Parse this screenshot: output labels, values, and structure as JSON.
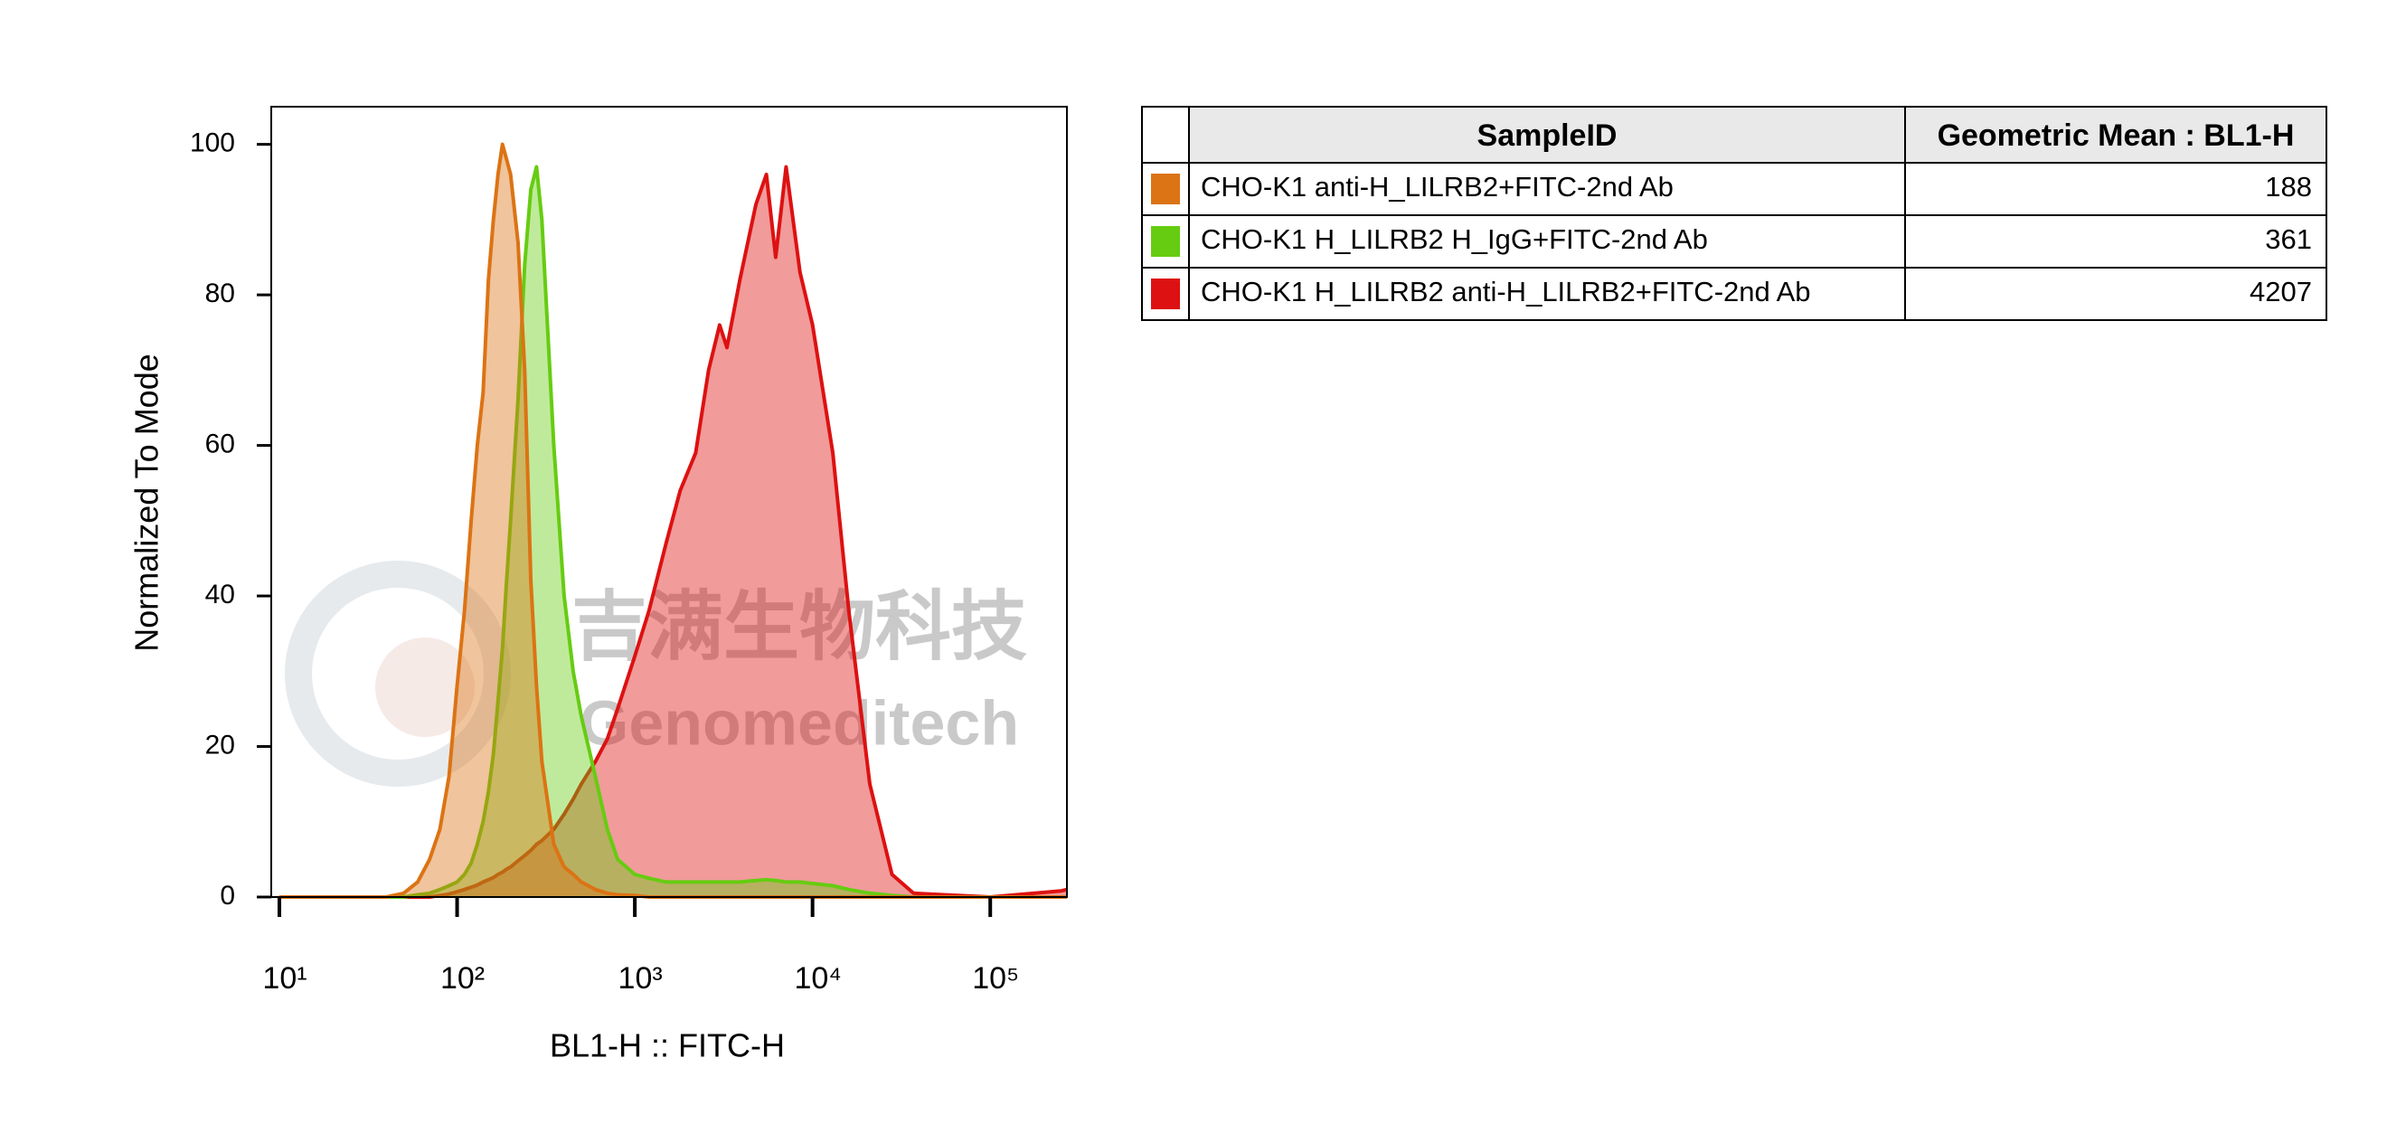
{
  "chart_data": {
    "type": "histogram-overlay",
    "x_label": "BL1-H :: FITC-H",
    "y_label": "Normalized To Mode",
    "xscale": "log",
    "grid": false,
    "xlim": [
      9,
      270000
    ],
    "ylim": [
      0,
      105
    ],
    "xticks": [
      {
        "value": 10,
        "label": "10¹"
      },
      {
        "value": 100,
        "label": "10²"
      },
      {
        "value": 1000,
        "label": "10³"
      },
      {
        "value": 10000,
        "label": "10⁴"
      },
      {
        "value": 100000,
        "label": "10⁵"
      }
    ],
    "yticks": [
      0,
      20,
      40,
      60,
      80,
      100
    ],
    "watermark": {
      "cn": "吉满生物科技",
      "en": "Genomeditech"
    },
    "legend_columns": [
      "SampleID",
      "Geometric Mean : BL1-H"
    ],
    "x": [
      10,
      40,
      50,
      60,
      70,
      80,
      90,
      100,
      110,
      120,
      130,
      140,
      150,
      160,
      170,
      180,
      190,
      200,
      220,
      240,
      260,
      280,
      300,
      350,
      400,
      450,
      500,
      600,
      700,
      800,
      1000,
      1200,
      1500,
      1800,
      2200,
      2600,
      3000,
      3300,
      3900,
      4800,
      5500,
      6200,
      7100,
      8500,
      10000,
      13000,
      16000,
      21000,
      28000,
      37000,
      100000,
      250000,
      270000
    ],
    "series": [
      {
        "name": "CHO-K1 anti-H_LILRB2+FITC-2nd Ab",
        "color": "#dc7314",
        "geometric_mean": 188,
        "values": [
          0,
          0,
          0.5,
          2,
          5,
          9,
          16,
          28,
          38,
          50,
          60,
          67,
          82,
          90,
          96,
          100,
          98,
          96,
          87,
          70,
          42,
          28,
          18,
          7,
          4,
          3,
          2,
          1,
          0.5,
          0.3,
          0.2,
          0,
          0,
          0,
          0,
          0,
          0,
          0,
          0,
          0,
          0,
          0,
          0,
          0,
          0,
          0,
          0,
          0,
          0,
          0,
          0,
          0,
          0
        ]
      },
      {
        "name": "CHO-K1 H_LILRB2 H_IgG+FITC-2nd Ab",
        "color": "#66cc11",
        "geometric_mean": 361,
        "values": [
          0,
          0,
          0,
          0.3,
          0.5,
          1,
          1.5,
          2,
          3,
          4.5,
          7,
          10,
          14,
          19,
          26,
          33,
          42,
          50,
          66,
          84,
          94,
          97,
          90,
          60,
          40,
          30,
          24,
          16,
          9,
          5,
          3,
          2.5,
          2,
          2,
          2,
          2,
          2,
          2,
          2,
          2.2,
          2.3,
          2.2,
          2,
          2,
          1.8,
          1.5,
          1,
          0.5,
          0.2,
          0,
          0,
          0,
          0
        ]
      },
      {
        "name": "CHO-K1 H_LILRB2 anti-H_LILRB2+FITC-2nd Ab",
        "color": "#dd1111",
        "geometric_mean": 4207,
        "values": [
          0,
          0,
          0,
          0,
          0,
          0.2,
          0.4,
          0.7,
          1,
          1.3,
          1.6,
          2,
          2.3,
          2.6,
          3,
          3.3,
          3.7,
          4,
          4.8,
          5.5,
          6.2,
          7,
          7.5,
          9,
          11,
          13,
          15,
          18,
          21,
          25,
          32,
          38,
          47,
          54,
          59,
          70,
          76,
          73,
          82,
          92,
          96,
          85,
          97,
          83,
          76,
          59,
          38,
          15,
          3,
          0.5,
          0,
          0.8,
          1
        ]
      }
    ]
  }
}
